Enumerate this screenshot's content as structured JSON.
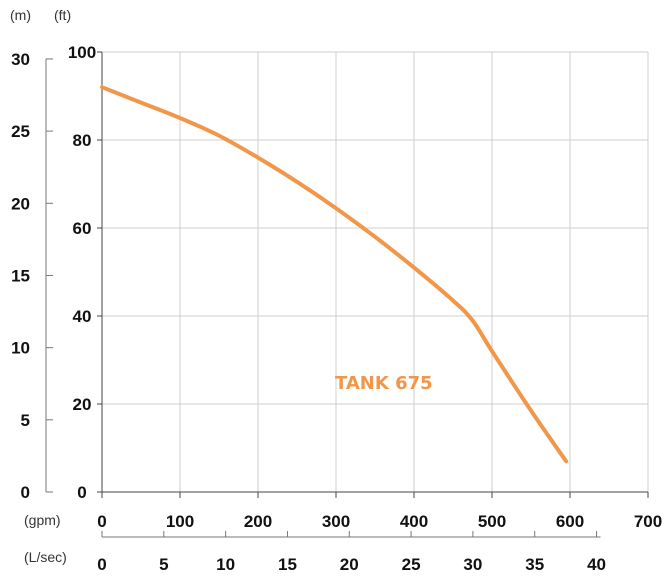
{
  "chart_data": {
    "type": "line",
    "title": "",
    "unit_labels": {
      "m": "(m)",
      "ft": "(ft)",
      "gpm": "(gpm)",
      "lsec": "(L/sec)"
    },
    "axes": {
      "head_m": {
        "ticks": [
          0,
          5,
          10,
          15,
          20,
          25,
          30
        ]
      },
      "head_ft": {
        "ticks": [
          0,
          20,
          40,
          60,
          80,
          100
        ],
        "range": [
          0,
          100
        ]
      },
      "flow_gpm": {
        "ticks": [
          0,
          100,
          200,
          300,
          400,
          500,
          600,
          700
        ],
        "range": [
          0,
          700
        ]
      },
      "flow_lsec": {
        "ticks": [
          0,
          5,
          10,
          15,
          20,
          25,
          30,
          35,
          40
        ]
      }
    },
    "grid": true,
    "series": [
      {
        "name": "TANK 675",
        "color": "#f2964a",
        "x": [
          0,
          50,
          100,
          150,
          200,
          250,
          300,
          350,
          400,
          450,
          475,
          500,
          550,
          595
        ],
        "y": [
          92,
          88.5,
          85,
          81,
          76,
          70.5,
          64.5,
          58,
          51,
          43.5,
          39,
          32,
          18.5,
          7
        ]
      }
    ]
  }
}
